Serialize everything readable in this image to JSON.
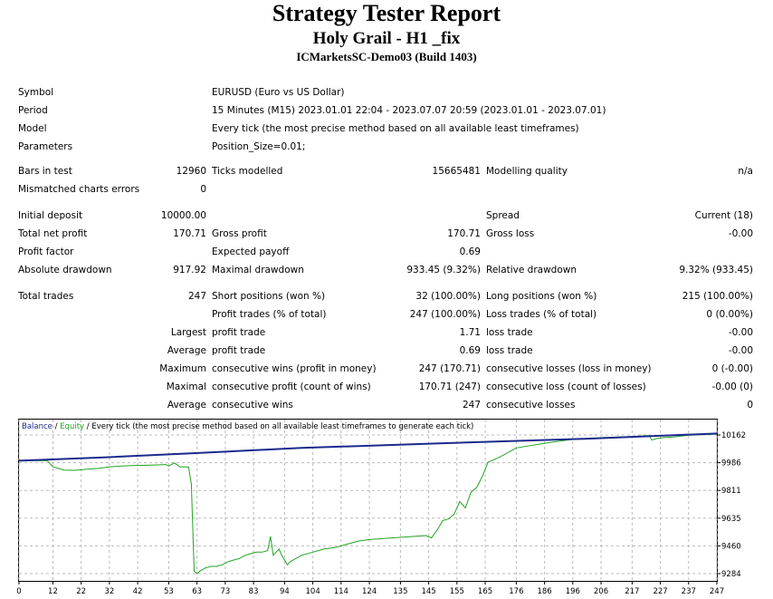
{
  "header": {
    "title": "Strategy Tester Report",
    "subtitle": "Holy Grail - H1 _fix",
    "server": "ICMarketsSC-Demo03 (Build 1403)"
  },
  "settings": {
    "symbol_label": "Symbol",
    "symbol_value": "EURUSD (Euro vs US Dollar)",
    "period_label": "Period",
    "period_value": "15 Minutes (M15) 2023.01.01 22:04 - 2023.07.07 20:59 (2023.01.01 - 2023.07.01)",
    "model_label": "Model",
    "model_value": "Every tick (the most precise method based on all available least timeframes)",
    "parameters_label": "Parameters",
    "parameters_value": "Position_Size=0.01;"
  },
  "stats": {
    "bars_label": "Bars in test",
    "bars_value": "12960",
    "ticks_label": "Ticks modelled",
    "ticks_value": "15665481",
    "quality_label": "Modelling quality",
    "quality_value": "n/a",
    "mismatch_label": "Mismatched charts errors",
    "mismatch_value": "0",
    "deposit_label": "Initial deposit",
    "deposit_value": "10000.00",
    "spread_label": "Spread",
    "spread_value": "Current (18)",
    "net_profit_label": "Total net profit",
    "net_profit_value": "170.71",
    "gross_profit_label": "Gross profit",
    "gross_profit_value": "170.71",
    "gross_loss_label": "Gross loss",
    "gross_loss_value": "-0.00",
    "profit_factor_label": "Profit factor",
    "expected_payoff_label": "Expected payoff",
    "expected_payoff_value": "0.69",
    "abs_dd_label": "Absolute drawdown",
    "abs_dd_value": "917.92",
    "max_dd_label": "Maximal drawdown",
    "max_dd_value": "933.45 (9.32%)",
    "rel_dd_label": "Relative drawdown",
    "rel_dd_value": "9.32% (933.45)",
    "total_trades_label": "Total trades",
    "total_trades_value": "247",
    "short_label": "Short positions (won %)",
    "short_value": "32 (100.00%)",
    "long_label": "Long positions (won %)",
    "long_value": "215 (100.00%)",
    "profit_trades_label": "Profit trades (% of total)",
    "profit_trades_value": "247 (100.00%)",
    "loss_trades_label": "Loss trades (% of total)",
    "loss_trades_value": "0 (0.00%)",
    "largest_label": "Largest",
    "largest_profit_label": "profit trade",
    "largest_profit_value": "1.71",
    "largest_loss_label": "loss trade",
    "largest_loss_value": "-0.00",
    "average_label": "Average",
    "average_profit_label": "profit trade",
    "average_profit_value": "0.69",
    "average_loss_label": "loss trade",
    "average_loss_value": "-0.00",
    "maximum_label": "Maximum",
    "max_cons_wins_label": "consecutive wins (profit in money)",
    "max_cons_wins_value": "247 (170.71)",
    "max_cons_losses_label": "consecutive losses (loss in money)",
    "max_cons_losses_value": "0 (-0.00)",
    "maximal_label": "Maximal",
    "maximal_cons_profit_label": "consecutive profit (count of wins)",
    "maximal_cons_profit_value": "170.71 (247)",
    "maximal_cons_loss_label": "consecutive loss (count of losses)",
    "maximal_cons_loss_value": "-0.00 (0)",
    "avg_label2": "Average",
    "avg_cons_wins_label": "consecutive wins",
    "avg_cons_wins_value": "247",
    "avg_cons_losses_label": "consecutive losses",
    "avg_cons_losses_value": "0"
  },
  "chart_data": {
    "type": "line",
    "caption_balance": "Balance",
    "caption_sep": " / ",
    "caption_equity": "Equity",
    "caption_rest": " / Every tick (the most precise method based on all available least timeframes to generate each tick)",
    "x_ticks": [
      "0",
      "12",
      "22",
      "32",
      "42",
      "53",
      "63",
      "73",
      "83",
      "94",
      "104",
      "114",
      "124",
      "135",
      "145",
      "155",
      "165",
      "176",
      "186",
      "196",
      "206",
      "217",
      "227",
      "237",
      "247"
    ],
    "y_ticks": [
      "10162",
      "9986",
      "9811",
      "9635",
      "9460",
      "9284"
    ],
    "ylim": [
      9284,
      10162
    ],
    "xlim": [
      0,
      247
    ],
    "series": [
      {
        "name": "Balance",
        "color": "#1a2a8c",
        "x": [
          0,
          30,
          60,
          100,
          150,
          200,
          247
        ],
        "y": [
          9999,
          10020,
          10045,
          10080,
          10110,
          10138,
          10171
        ]
      },
      {
        "name": "Equity",
        "color": "#21a321",
        "x": [
          0,
          10,
          12,
          14,
          16,
          20,
          24,
          28,
          32,
          36,
          40,
          44,
          48,
          52,
          53,
          55,
          57,
          60,
          61,
          62,
          63,
          64,
          66,
          68,
          70,
          72,
          74,
          76,
          78,
          80,
          82,
          84,
          86,
          88,
          89,
          90,
          91,
          92,
          93,
          94,
          95,
          96,
          98,
          100,
          104,
          108,
          112,
          116,
          120,
          124,
          128,
          132,
          136,
          140,
          144,
          146,
          148,
          150,
          152,
          154,
          156,
          158,
          160,
          162,
          164,
          166,
          170,
          176,
          186,
          196,
          206,
          217,
          223,
          224,
          226,
          228,
          232,
          237,
          247
        ],
        "y": [
          9999,
          10000,
          9960,
          9950,
          9940,
          9938,
          9945,
          9950,
          9960,
          9965,
          9968,
          9970,
          9972,
          9975,
          9965,
          9985,
          9960,
          9960,
          9850,
          9300,
          9284,
          9300,
          9320,
          9330,
          9330,
          9340,
          9360,
          9370,
          9380,
          9400,
          9410,
          9420,
          9420,
          9430,
          9520,
          9400,
          9420,
          9440,
          9400,
          9370,
          9340,
          9360,
          9380,
          9400,
          9420,
          9440,
          9450,
          9470,
          9490,
          9500,
          9505,
          9510,
          9515,
          9520,
          9525,
          9510,
          9560,
          9620,
          9630,
          9660,
          9740,
          9700,
          9800,
          9830,
          9900,
          9990,
          10020,
          10080,
          10110,
          10135,
          10145,
          10152,
          10158,
          10130,
          10140,
          10145,
          10150,
          10160,
          10168
        ]
      }
    ]
  }
}
